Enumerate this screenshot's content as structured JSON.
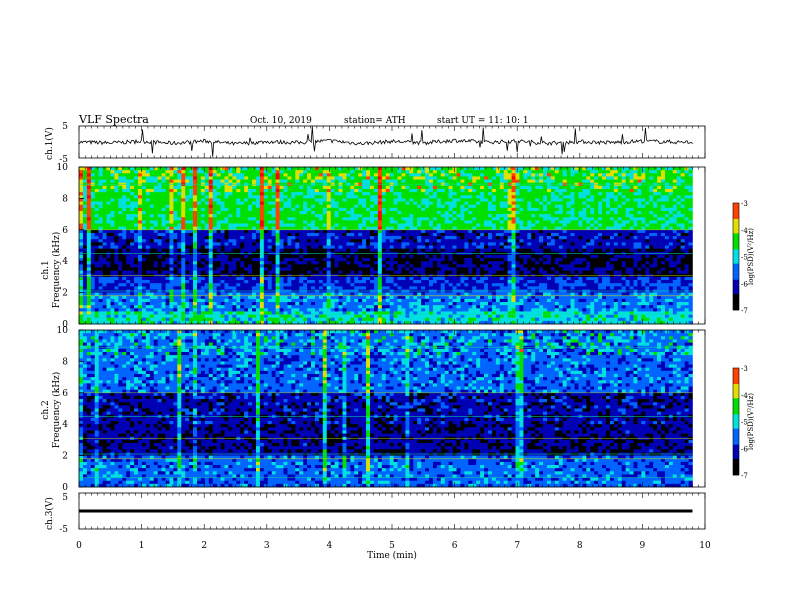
{
  "header": {
    "title": "VLF  Spectra",
    "date": "Oct. 10, 2019",
    "station": "station= ATH",
    "start": "start  UT  =    11: 10: 1"
  },
  "chart_data": [
    {
      "type": "line",
      "panel": "ch1-waveform",
      "ylabel": "ch.1(V)",
      "ylim": [
        -5,
        5
      ],
      "yticks": [
        "5",
        "-5"
      ],
      "x": [
        0,
        0.5,
        1,
        1.5,
        2,
        2.5,
        3,
        3.5,
        4,
        4.5,
        5,
        5.5,
        6,
        6.5,
        7,
        7.5,
        8,
        8.5,
        9,
        9.5,
        9.8
      ],
      "values": [
        0.0,
        -0.3,
        0.2,
        -0.4,
        0.3,
        -0.6,
        0.1,
        -0.2,
        0.4,
        -0.5,
        0.2,
        -0.3,
        0.5,
        -0.1,
        0.3,
        -0.4,
        0.1,
        -0.2,
        0.3,
        0.0,
        -0.1
      ]
    },
    {
      "type": "heatmap",
      "panel": "ch1-spectrogram",
      "ylabel": "ch.1\nFrequency (kHz)",
      "ylim": [
        0,
        10
      ],
      "yticks": [
        "10",
        "8",
        "6",
        "4",
        "2",
        "0"
      ],
      "colorbar": {
        "label": "log(PSD)(V²/Hz)",
        "range": [
          -7,
          -3
        ],
        "ticks": [
          "-3",
          "-4",
          "-5",
          "-6",
          "-7"
        ],
        "colors": [
          "#000000",
          "#0000b4",
          "#0064ff",
          "#00e0e0",
          "#00e000",
          "#e0e000",
          "#ff4000",
          "#ff0000",
          "#ffffff"
        ]
      },
      "frequency_levels_khz": [
        {
          "band": [
            6.0,
            10.0
          ],
          "log_psd": -4.6
        },
        {
          "band": [
            4.7,
            6.0
          ],
          "log_psd": -6.1
        },
        {
          "band": [
            3.0,
            4.7
          ],
          "log_psd": -6.5
        },
        {
          "band": [
            2.0,
            3.0
          ],
          "log_psd": -5.9
        },
        {
          "band": [
            0.9,
            2.0
          ],
          "log_psd": -5.5
        },
        {
          "band": [
            0.0,
            0.9
          ],
          "log_psd": -5.0
        }
      ]
    },
    {
      "type": "heatmap",
      "panel": "ch2-spectrogram",
      "ylabel": "ch.2\nFrequency (kHz)",
      "ylim": [
        0,
        10
      ],
      "yticks": [
        "10",
        "8",
        "6",
        "4",
        "2",
        "0"
      ],
      "colorbar": {
        "label": "log(PSD)(V²/Hz)",
        "range": [
          -7,
          -3
        ],
        "ticks": [
          "-3",
          "-4",
          "-5",
          "-6",
          "-7"
        ],
        "colors": [
          "#000000",
          "#0000b4",
          "#0064ff",
          "#00e0e0",
          "#00e000",
          "#e0e000",
          "#ff4000",
          "#ff0000",
          "#ffffff"
        ]
      },
      "frequency_levels_khz": [
        {
          "band": [
            6.0,
            10.0
          ],
          "log_psd": -5.6
        },
        {
          "band": [
            4.0,
            6.0
          ],
          "log_psd": -6.2
        },
        {
          "band": [
            2.0,
            4.0
          ],
          "log_psd": -6.3
        },
        {
          "band": [
            0.0,
            2.0
          ],
          "log_psd": -5.6
        }
      ]
    },
    {
      "type": "line",
      "panel": "ch3-waveform",
      "ylabel": "ch.3(V)",
      "ylim": [
        -5,
        5
      ],
      "yticks": [
        "5",
        "-5"
      ],
      "x": [
        0,
        9.8
      ],
      "values": [
        0.0,
        0.0
      ]
    }
  ],
  "xaxis": {
    "label": "Time  (min)",
    "ticks": [
      "0",
      "1",
      "2",
      "3",
      "4",
      "5",
      "6",
      "7",
      "8",
      "9",
      "10"
    ],
    "range": [
      0,
      10
    ]
  }
}
